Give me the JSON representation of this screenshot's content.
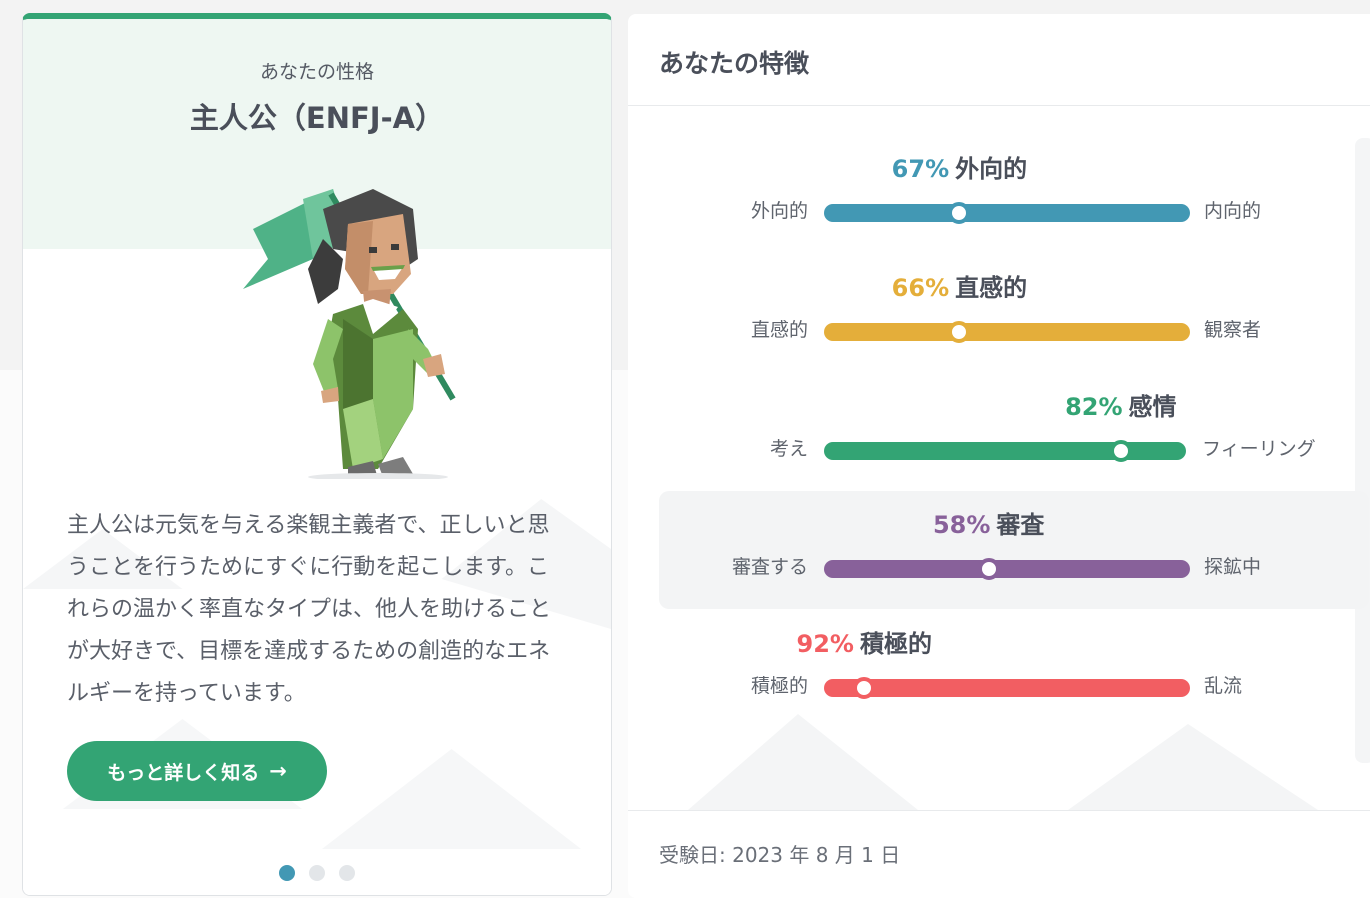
{
  "type_card": {
    "subtitle": "あなたの性格",
    "title": "主人公（ENFJ-A）",
    "description": "主人公は元気を与える楽観主義者で、正しいと思うことを行うためにすぐに行動を起こします。これらの温かく率直なタイプは、他人を助けることが大好きで、目標を達成するための創造的なエネルギーを持っています。",
    "cta_label": "もっと詳しく知る",
    "cta_icon": "arrow-right-icon",
    "accent_color": "#33a474",
    "pager": {
      "count": 3,
      "active": 0
    }
  },
  "traits_panel": {
    "title": "あなたの特徴",
    "traits": [
      {
        "percent": "67%",
        "label": "外向的",
        "left": "外向的",
        "right": "内向的",
        "value": 0.37,
        "color": "#4298b4"
      },
      {
        "percent": "66%",
        "label": "直感的",
        "left": "直感的",
        "right": "観察者",
        "value": 0.37,
        "color": "#e4ae3a"
      },
      {
        "percent": "82%",
        "label": "感情",
        "left": "考え",
        "right": "フィーリング",
        "value": 0.82,
        "color": "#33a474"
      },
      {
        "percent": "58%",
        "label": "審査",
        "left": "審査する",
        "right": "探鉱中",
        "value": 0.45,
        "color": "#88619a"
      },
      {
        "percent": "92%",
        "label": "積極的",
        "left": "積極的",
        "right": "乱流",
        "value": 0.11,
        "color": "#f25e62"
      }
    ],
    "highlighted_index": 3,
    "test_date": "受験日: 2023 年 8 月 1 日"
  }
}
